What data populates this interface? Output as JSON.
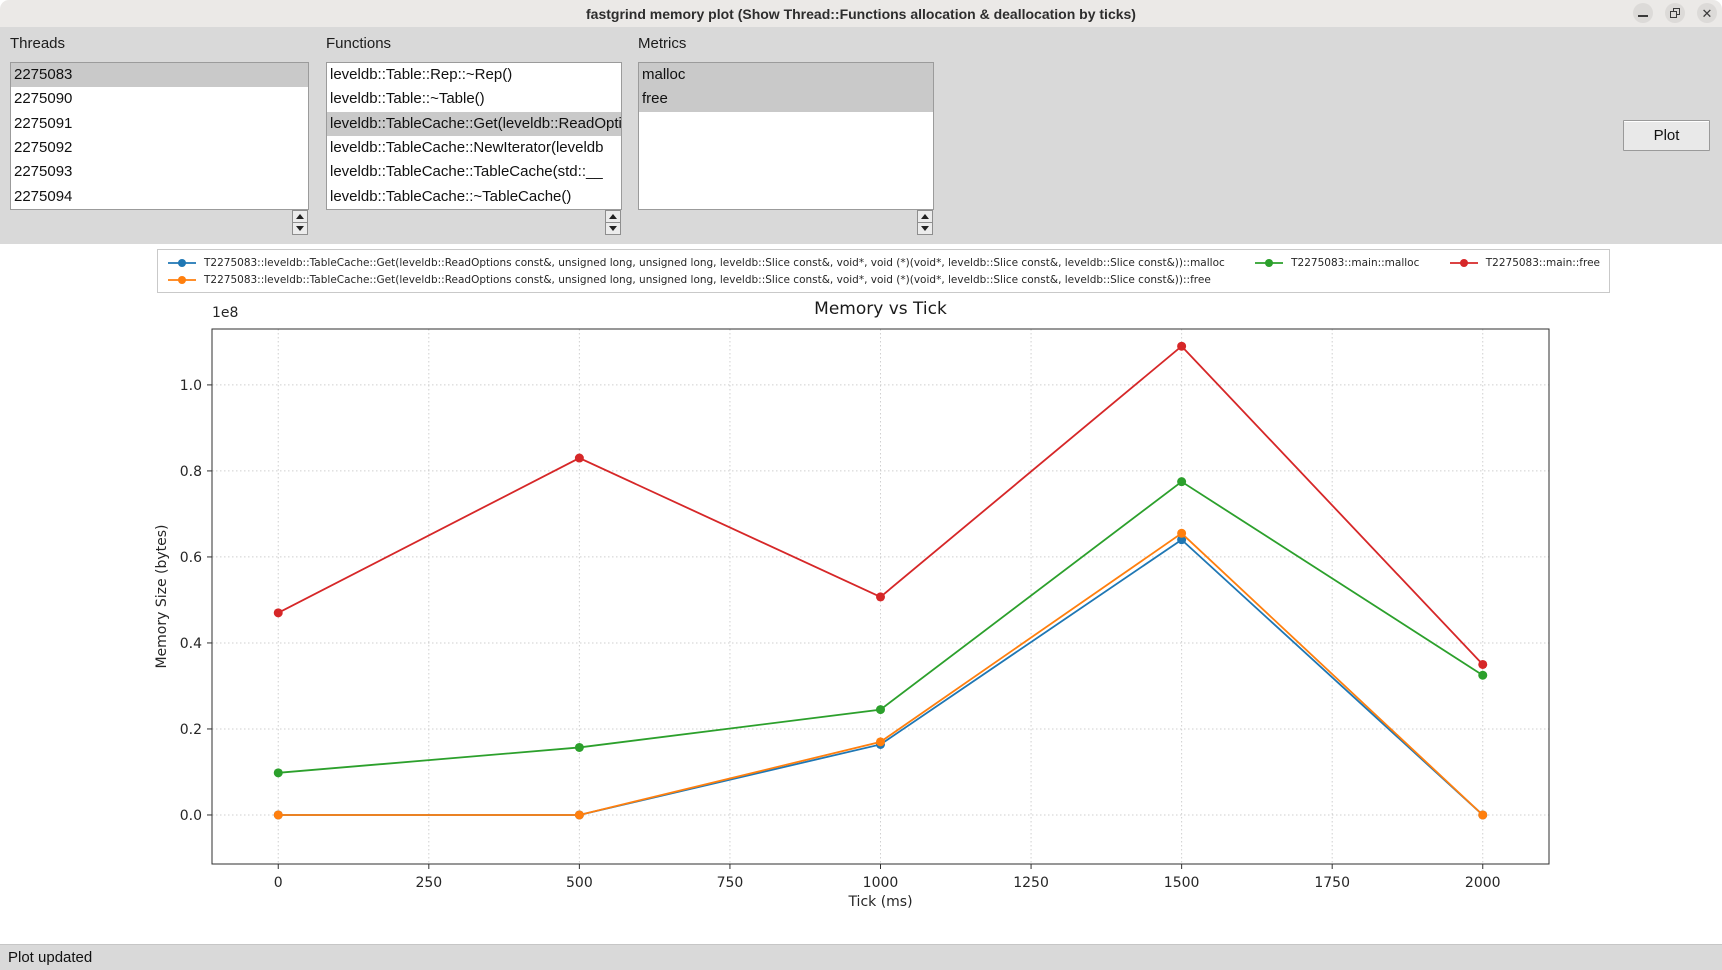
{
  "window": {
    "title": "fastgrind memory plot (Show Thread::Functions allocation & deallocation by ticks)",
    "controls": [
      {
        "icon": "minimize-icon",
        "glyph": "–"
      },
      {
        "icon": "maximize-icon",
        "glyph": "❐"
      },
      {
        "icon": "close-icon",
        "glyph": "✕"
      }
    ]
  },
  "panels": {
    "threads": {
      "label": "Threads",
      "items": [
        {
          "text": "2275083",
          "selected": true
        },
        {
          "text": "2275090",
          "selected": false
        },
        {
          "text": "2275091",
          "selected": false
        },
        {
          "text": "2275092",
          "selected": false
        },
        {
          "text": "2275093",
          "selected": false
        },
        {
          "text": "2275094",
          "selected": false
        }
      ]
    },
    "functions": {
      "label": "Functions",
      "items": [
        {
          "text": "leveldb::Table::Rep::~Rep()",
          "selected": false
        },
        {
          "text": "leveldb::Table::~Table()",
          "selected": false
        },
        {
          "text": "leveldb::TableCache::Get(leveldb::ReadOptions const&, unsigned long, unsigned long, leveldb::Slice const&, void*, void (*)(void*, leveldb::Slice const&, leveldb::Slice const&))",
          "selected": true
        },
        {
          "text": "leveldb::TableCache::NewIterator(leveldb",
          "selected": false
        },
        {
          "text": "leveldb::TableCache::TableCache(std::__",
          "selected": false
        },
        {
          "text": "leveldb::TableCache::~TableCache()",
          "selected": false
        }
      ]
    },
    "metrics": {
      "label": "Metrics",
      "items": [
        {
          "text": "malloc",
          "selected": true
        },
        {
          "text": "free",
          "selected": true
        }
      ]
    },
    "plot_button_label": "Plot"
  },
  "legend": {
    "rows": [
      [
        {
          "color": "#1f77b4",
          "label": "T2275083::leveldb::TableCache::Get(leveldb::ReadOptions const&, unsigned long, unsigned long, leveldb::Slice const&, void*, void (*)(void*, leveldb::Slice const&, leveldb::Slice const&))::malloc"
        },
        {
          "color": "#2ca02c",
          "label": "T2275083::main::malloc"
        },
        {
          "color": "#d62728",
          "label": "T2275083::main::free"
        }
      ],
      [
        {
          "color": "#ff7f0e",
          "label": "T2275083::leveldb::TableCache::Get(leveldb::ReadOptions const&, unsigned long, unsigned long, leveldb::Slice const&, void*, void (*)(void*, leveldb::Slice const&, leveldb::Slice const&))::free"
        }
      ]
    ]
  },
  "chart_data": {
    "type": "line",
    "title": "Memory vs Tick",
    "xlabel": "Tick (ms)",
    "ylabel": "Memory Size (bytes)",
    "offset_label": "1e8",
    "x": [
      0,
      500,
      1000,
      1500,
      2000
    ],
    "xticks": [
      0,
      250,
      500,
      750,
      1000,
      1250,
      1500,
      1750,
      2000
    ],
    "yticks": [
      0.0,
      0.2,
      0.4,
      0.6,
      0.8,
      1.0
    ],
    "ytick_scale": 100000000.0,
    "xlim": [
      -110,
      2110
    ],
    "ylim": [
      -0.114,
      1.13
    ],
    "grid": true,
    "legend_position": "top",
    "series": [
      {
        "name": "T2275083::leveldb::TableCache::Get(leveldb::ReadOptions const&, unsigned long, unsigned long, leveldb::Slice const&, void*, void (*)(void*, leveldb::Slice const&, leveldb::Slice const&))::malloc",
        "color": "#1f77b4",
        "values": [
          0,
          0,
          16400000,
          64000000,
          0
        ]
      },
      {
        "name": "T2275083::leveldb::TableCache::Get(leveldb::ReadOptions const&, unsigned long, unsigned long, leveldb::Slice const&, void*, void (*)(void*, leveldb::Slice const&, leveldb::Slice const&))::free",
        "color": "#ff7f0e",
        "values": [
          0,
          0,
          17000000,
          65500000,
          0
        ]
      },
      {
        "name": "T2275083::main::malloc",
        "color": "#2ca02c",
        "values": [
          9800000,
          15700000,
          24500000,
          77500000,
          32500000
        ]
      },
      {
        "name": "T2275083::main::free",
        "color": "#d62728",
        "values": [
          47000000,
          83000000,
          50700000,
          109000000,
          35000000
        ]
      }
    ]
  },
  "statusbar": {
    "text": "Plot updated"
  }
}
